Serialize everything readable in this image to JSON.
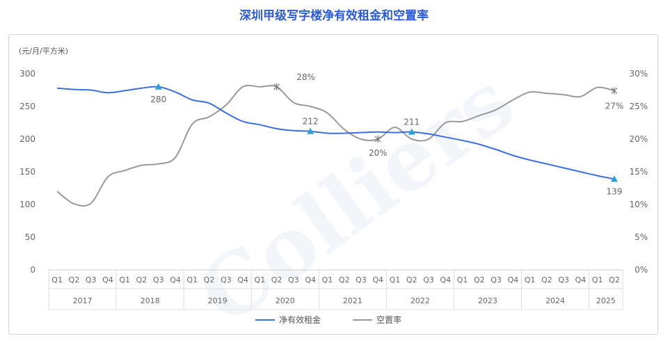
{
  "page": {
    "title": "深圳甲级写字楼净有效租金和空置率"
  },
  "chart_data": {
    "type": "line",
    "watermark": "Colliers",
    "left_unit": "(元/月/平方米)",
    "left_axis": {
      "ylim": [
        0,
        300
      ],
      "ticks": [
        0,
        50,
        100,
        150,
        200,
        250,
        300
      ]
    },
    "right_axis": {
      "ylim": [
        0,
        30
      ],
      "ticks": [
        "0%",
        "5%",
        "10%",
        "15%",
        "20%",
        "25%",
        "30%"
      ]
    },
    "quarters": [
      "Q1",
      "Q2",
      "Q3",
      "Q4",
      "Q1",
      "Q2",
      "Q3",
      "Q4",
      "Q1",
      "Q2",
      "Q3",
      "Q4",
      "Q1",
      "Q2",
      "Q3",
      "Q4",
      "Q1",
      "Q2",
      "Q3",
      "Q4",
      "Q1",
      "Q2",
      "Q3",
      "Q4",
      "Q1",
      "Q2",
      "Q3",
      "Q4",
      "Q1",
      "Q2",
      "Q3",
      "Q4",
      "Q1",
      "Q2"
    ],
    "years": [
      {
        "label": "2017",
        "quarters": 4
      },
      {
        "label": "2018",
        "quarters": 4
      },
      {
        "label": "2019",
        "quarters": 4
      },
      {
        "label": "2020",
        "quarters": 4
      },
      {
        "label": "2021",
        "quarters": 4
      },
      {
        "label": "2022",
        "quarters": 4
      },
      {
        "label": "2023",
        "quarters": 4
      },
      {
        "label": "2024",
        "quarters": 4
      },
      {
        "label": "2025",
        "quarters": 2
      }
    ],
    "series": [
      {
        "name": "净有效租金",
        "axis": "left",
        "color": "#3b6fe0",
        "marker": "triangle",
        "values": [
          278,
          276,
          275,
          271,
          274,
          278,
          280,
          272,
          260,
          255,
          240,
          227,
          222,
          216,
          213,
          212,
          209,
          209,
          210,
          211,
          210,
          211,
          208,
          203,
          198,
          192,
          184,
          175,
          168,
          162,
          156,
          150,
          144,
          139
        ],
        "labels": [
          {
            "index": 6,
            "text": "280"
          },
          {
            "index": 15,
            "text": "212"
          },
          {
            "index": 21,
            "text": "211"
          },
          {
            "index": 33,
            "text": "139"
          }
        ]
      },
      {
        "name": "空置率",
        "axis": "right",
        "color": "#999999",
        "marker": "star",
        "values": [
          12.0,
          10.1,
          10.2,
          14.2,
          15.2,
          16.0,
          16.2,
          17.2,
          22.3,
          23.4,
          25.2,
          28.0,
          28.0,
          28.0,
          25.6,
          25.0,
          24.0,
          21.5,
          20.0,
          20.0,
          21.8,
          20.0,
          20.0,
          22.5,
          22.7,
          23.6,
          24.5,
          26.0,
          27.2,
          27.0,
          26.8,
          26.5,
          27.9,
          27.4
        ],
        "labels": [
          {
            "index": 13,
            "text": "28%"
          },
          {
            "index": 19,
            "text": "20%"
          },
          {
            "index": 33,
            "text": "27%"
          }
        ]
      }
    ]
  }
}
